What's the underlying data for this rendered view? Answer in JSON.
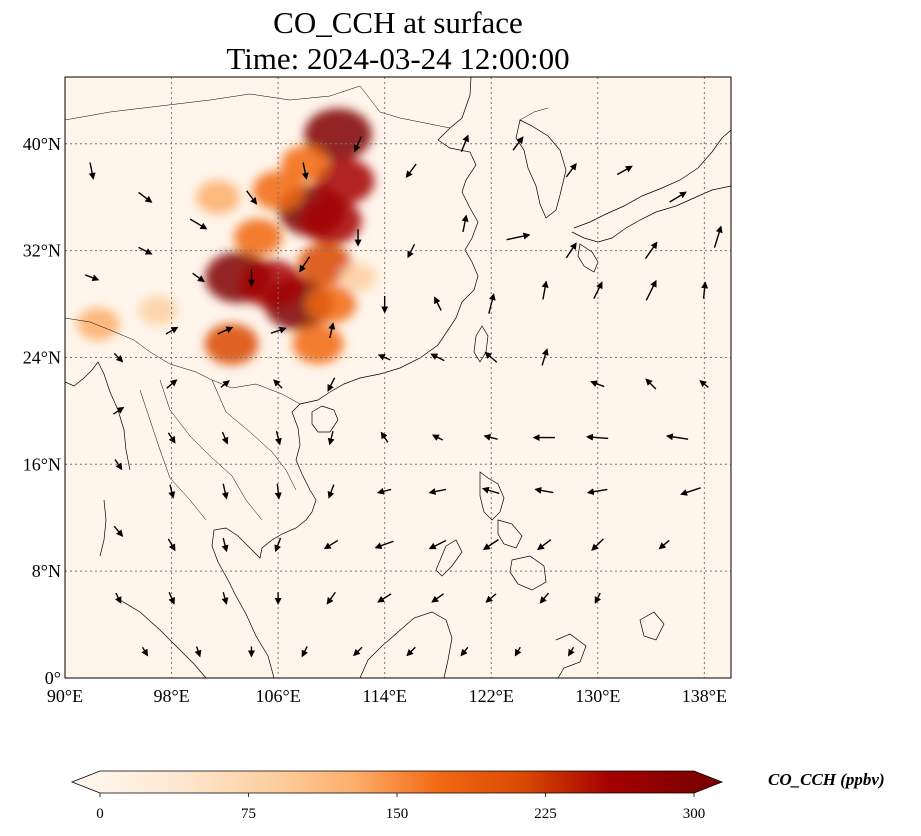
{
  "title": {
    "line1": "CO_CCH at surface",
    "line2": "Time: 2024-03-24 12:00:00"
  },
  "map": {
    "lon_range": [
      90,
      140
    ],
    "lat_range": [
      0,
      45
    ],
    "lon_ticks": [
      {
        "value": 90,
        "label": "90°E"
      },
      {
        "value": 98,
        "label": "98°E"
      },
      {
        "value": 106,
        "label": "106°E"
      },
      {
        "value": 114,
        "label": "114°E"
      },
      {
        "value": 122,
        "label": "122°E"
      },
      {
        "value": 130,
        "label": "130°E"
      },
      {
        "value": 138,
        "label": "138°E"
      }
    ],
    "lat_ticks": [
      {
        "value": 0,
        "label": "0°"
      },
      {
        "value": 8,
        "label": "8°N"
      },
      {
        "value": 16,
        "label": "16°N"
      },
      {
        "value": 24,
        "label": "24°N"
      },
      {
        "value": 32,
        "label": "32°N"
      },
      {
        "value": 40,
        "label": "40°N"
      }
    ],
    "gridlines": true,
    "background_color": "#fff5eb",
    "plumes": [
      {
        "lon": 107.5,
        "lat": 28.0,
        "value": 300
      },
      {
        "lon": 103.0,
        "lat": 30.0,
        "value": 290
      },
      {
        "lon": 105.5,
        "lat": 29.5,
        "value": 260
      },
      {
        "lon": 108.5,
        "lat": 35.0,
        "value": 290
      },
      {
        "lon": 110.0,
        "lat": 34.2,
        "value": 250
      },
      {
        "lon": 110.5,
        "lat": 40.7,
        "value": 300
      },
      {
        "lon": 111.0,
        "lat": 37.2,
        "value": 240
      },
      {
        "lon": 106.0,
        "lat": 36.5,
        "value": 180
      },
      {
        "lon": 108.0,
        "lat": 38.5,
        "value": 150
      },
      {
        "lon": 109.5,
        "lat": 31.0,
        "value": 200
      },
      {
        "lon": 110.0,
        "lat": 28.0,
        "value": 170
      },
      {
        "lon": 104.5,
        "lat": 33.0,
        "value": 160
      },
      {
        "lon": 101.5,
        "lat": 36.0,
        "value": 130
      },
      {
        "lon": 102.5,
        "lat": 25.0,
        "value": 200
      },
      {
        "lon": 109.0,
        "lat": 25.0,
        "value": 180
      },
      {
        "lon": 92.5,
        "lat": 26.5,
        "value": 120
      },
      {
        "lon": 97.0,
        "lat": 27.5,
        "value": 90
      },
      {
        "lon": 112.0,
        "lat": 30.0,
        "value": 80
      }
    ],
    "winds": [
      {
        "lon": 92,
        "lat": 38,
        "u": 0.2,
        "v": -1.0
      },
      {
        "lon": 96,
        "lat": 36,
        "u": 0.8,
        "v": -0.6
      },
      {
        "lon": 100,
        "lat": 34,
        "u": 1.0,
        "v": -0.6
      },
      {
        "lon": 104,
        "lat": 36,
        "u": 0.6,
        "v": -0.8
      },
      {
        "lon": 108,
        "lat": 38,
        "u": 0.2,
        "v": -1.0
      },
      {
        "lon": 112,
        "lat": 40,
        "u": -0.4,
        "v": -0.9
      },
      {
        "lon": 116,
        "lat": 38,
        "u": -0.6,
        "v": -0.8
      },
      {
        "lon": 120,
        "lat": 40,
        "u": 0.4,
        "v": 1.0
      },
      {
        "lon": 124,
        "lat": 40,
        "u": 0.6,
        "v": 0.8
      },
      {
        "lon": 128,
        "lat": 38,
        "u": 0.6,
        "v": 0.8
      },
      {
        "lon": 132,
        "lat": 38,
        "u": 0.9,
        "v": 0.5
      },
      {
        "lon": 136,
        "lat": 36,
        "u": 1.0,
        "v": 0.6
      },
      {
        "lon": 139,
        "lat": 33,
        "u": 0.4,
        "v": 1.3
      },
      {
        "lon": 134,
        "lat": 32,
        "u": 0.7,
        "v": 1.0
      },
      {
        "lon": 128,
        "lat": 32,
        "u": 0.6,
        "v": 0.9
      },
      {
        "lon": 124,
        "lat": 33,
        "u": 1.4,
        "v": 0.3
      },
      {
        "lon": 120,
        "lat": 34,
        "u": 0.2,
        "v": 1.0
      },
      {
        "lon": 116,
        "lat": 32,
        "u": -0.4,
        "v": -0.8
      },
      {
        "lon": 112,
        "lat": 33,
        "u": 0.0,
        "v": -1.0
      },
      {
        "lon": 108,
        "lat": 31,
        "u": -0.6,
        "v": -0.9
      },
      {
        "lon": 104,
        "lat": 30,
        "u": 0.0,
        "v": -1.0
      },
      {
        "lon": 100,
        "lat": 30,
        "u": 0.7,
        "v": -0.5
      },
      {
        "lon": 96,
        "lat": 32,
        "u": 0.8,
        "v": -0.4
      },
      {
        "lon": 92,
        "lat": 30,
        "u": 0.8,
        "v": -0.3
      },
      {
        "lon": 94,
        "lat": 24,
        "u": 0.5,
        "v": -0.5
      },
      {
        "lon": 98,
        "lat": 26,
        "u": 0.7,
        "v": 0.4
      },
      {
        "lon": 102,
        "lat": 26,
        "u": 0.9,
        "v": 0.4
      },
      {
        "lon": 106,
        "lat": 26,
        "u": 0.9,
        "v": 0.3
      },
      {
        "lon": 110,
        "lat": 26,
        "u": 0.2,
        "v": 0.9
      },
      {
        "lon": 114,
        "lat": 28,
        "u": 0.0,
        "v": -1.0
      },
      {
        "lon": 118,
        "lat": 28,
        "u": -0.4,
        "v": 0.8
      },
      {
        "lon": 122,
        "lat": 28,
        "u": 0.3,
        "v": 1.2
      },
      {
        "lon": 126,
        "lat": 29,
        "u": 0.2,
        "v": 1.1
      },
      {
        "lon": 130,
        "lat": 29,
        "u": 0.5,
        "v": 1.0
      },
      {
        "lon": 134,
        "lat": 29,
        "u": 0.6,
        "v": 1.2
      },
      {
        "lon": 138,
        "lat": 29,
        "u": 0.1,
        "v": 1.0
      },
      {
        "lon": 126,
        "lat": 24,
        "u": 0.3,
        "v": 1.0
      },
      {
        "lon": 122,
        "lat": 24,
        "u": -0.7,
        "v": 0.6
      },
      {
        "lon": 118,
        "lat": 24,
        "u": -0.8,
        "v": 0.4
      },
      {
        "lon": 114,
        "lat": 24,
        "u": -0.7,
        "v": 0.3
      },
      {
        "lon": 110,
        "lat": 22,
        "u": -0.4,
        "v": -0.8
      },
      {
        "lon": 106,
        "lat": 22,
        "u": -0.5,
        "v": 0.5
      },
      {
        "lon": 102,
        "lat": 22,
        "u": 0.5,
        "v": 0.4
      },
      {
        "lon": 98,
        "lat": 22,
        "u": 0.6,
        "v": 0.5
      },
      {
        "lon": 94,
        "lat": 20,
        "u": 0.6,
        "v": 0.4
      },
      {
        "lon": 130,
        "lat": 22,
        "u": -0.8,
        "v": 0.3
      },
      {
        "lon": 134,
        "lat": 22,
        "u": -0.6,
        "v": 0.6
      },
      {
        "lon": 138,
        "lat": 22,
        "u": -0.5,
        "v": 0.4
      },
      {
        "lon": 126,
        "lat": 18,
        "u": -1.3,
        "v": 0.0
      },
      {
        "lon": 130,
        "lat": 18,
        "u": -1.3,
        "v": 0.1
      },
      {
        "lon": 136,
        "lat": 18,
        "u": -1.3,
        "v": 0.2
      },
      {
        "lon": 122,
        "lat": 18,
        "u": -0.8,
        "v": 0.2
      },
      {
        "lon": 118,
        "lat": 18,
        "u": -0.6,
        "v": 0.3
      },
      {
        "lon": 114,
        "lat": 18,
        "u": -0.4,
        "v": 0.6
      },
      {
        "lon": 110,
        "lat": 18,
        "u": -0.2,
        "v": -0.8
      },
      {
        "lon": 106,
        "lat": 18,
        "u": 0.2,
        "v": -0.8
      },
      {
        "lon": 102,
        "lat": 18,
        "u": 0.3,
        "v": -0.7
      },
      {
        "lon": 98,
        "lat": 18,
        "u": 0.4,
        "v": -0.6
      },
      {
        "lon": 94,
        "lat": 16,
        "u": 0.4,
        "v": -0.6
      },
      {
        "lon": 98,
        "lat": 14,
        "u": 0.2,
        "v": -0.8
      },
      {
        "lon": 102,
        "lat": 14,
        "u": 0.2,
        "v": -0.9
      },
      {
        "lon": 106,
        "lat": 14,
        "u": 0.1,
        "v": -0.9
      },
      {
        "lon": 110,
        "lat": 14,
        "u": -0.3,
        "v": -0.8
      },
      {
        "lon": 114,
        "lat": 14,
        "u": -0.8,
        "v": -0.2
      },
      {
        "lon": 118,
        "lat": 14,
        "u": -1.0,
        "v": -0.2
      },
      {
        "lon": 122,
        "lat": 14,
        "u": -1.0,
        "v": 0.3
      },
      {
        "lon": 126,
        "lat": 14,
        "u": -1.1,
        "v": 0.2
      },
      {
        "lon": 130,
        "lat": 14,
        "u": -1.2,
        "v": -0.2
      },
      {
        "lon": 137,
        "lat": 14,
        "u": -1.2,
        "v": -0.4
      },
      {
        "lon": 94,
        "lat": 11,
        "u": 0.5,
        "v": -0.6
      },
      {
        "lon": 98,
        "lat": 10,
        "u": 0.4,
        "v": -0.7
      },
      {
        "lon": 102,
        "lat": 10,
        "u": 0.2,
        "v": -0.8
      },
      {
        "lon": 106,
        "lat": 10,
        "u": -0.3,
        "v": -0.8
      },
      {
        "lon": 110,
        "lat": 10,
        "u": -0.8,
        "v": -0.5
      },
      {
        "lon": 114,
        "lat": 10,
        "u": -1.1,
        "v": -0.4
      },
      {
        "lon": 118,
        "lat": 10,
        "u": -1.0,
        "v": -0.5
      },
      {
        "lon": 122,
        "lat": 10,
        "u": -0.9,
        "v": -0.6
      },
      {
        "lon": 126,
        "lat": 10,
        "u": -0.8,
        "v": -0.6
      },
      {
        "lon": 130,
        "lat": 10,
        "u": -0.7,
        "v": -0.7
      },
      {
        "lon": 135,
        "lat": 10,
        "u": -0.6,
        "v": -0.5
      },
      {
        "lon": 94,
        "lat": 6,
        "u": 0.3,
        "v": -0.6
      },
      {
        "lon": 98,
        "lat": 6,
        "u": 0.3,
        "v": -0.7
      },
      {
        "lon": 102,
        "lat": 6,
        "u": 0.2,
        "v": -0.7
      },
      {
        "lon": 106,
        "lat": 6,
        "u": 0.0,
        "v": -0.7
      },
      {
        "lon": 110,
        "lat": 6,
        "u": -0.5,
        "v": -0.7
      },
      {
        "lon": 114,
        "lat": 6,
        "u": -0.8,
        "v": -0.5
      },
      {
        "lon": 118,
        "lat": 6,
        "u": -0.7,
        "v": -0.5
      },
      {
        "lon": 122,
        "lat": 6,
        "u": -0.6,
        "v": -0.5
      },
      {
        "lon": 126,
        "lat": 6,
        "u": -0.5,
        "v": -0.6
      },
      {
        "lon": 130,
        "lat": 6,
        "u": -0.3,
        "v": -0.6
      },
      {
        "lon": 96,
        "lat": 2,
        "u": 0.3,
        "v": -0.5
      },
      {
        "lon": 100,
        "lat": 2,
        "u": 0.2,
        "v": -0.6
      },
      {
        "lon": 104,
        "lat": 2,
        "u": 0.0,
        "v": -0.6
      },
      {
        "lon": 108,
        "lat": 2,
        "u": -0.3,
        "v": -0.6
      },
      {
        "lon": 112,
        "lat": 2,
        "u": -0.5,
        "v": -0.5
      },
      {
        "lon": 116,
        "lat": 2,
        "u": -0.5,
        "v": -0.5
      },
      {
        "lon": 120,
        "lat": 2,
        "u": -0.4,
        "v": -0.5
      },
      {
        "lon": 124,
        "lat": 2,
        "u": -0.3,
        "v": -0.5
      },
      {
        "lon": 128,
        "lat": 2,
        "u": -0.3,
        "v": -0.5
      }
    ]
  },
  "colorbar": {
    "title": "CO_CCH (ppbv)",
    "min": 0,
    "max": 300,
    "extend": "both",
    "ticks": [
      {
        "value": 0,
        "label": "0"
      },
      {
        "value": 75,
        "label": "75"
      },
      {
        "value": 150,
        "label": "150"
      },
      {
        "value": 225,
        "label": "225"
      },
      {
        "value": 300,
        "label": "300"
      }
    ],
    "colors": [
      "#fff5eb",
      "#fee6ce",
      "#fdd0a2",
      "#fdae6b",
      "#f16913",
      "#d94801",
      "#a50000",
      "#7f0000"
    ]
  }
}
